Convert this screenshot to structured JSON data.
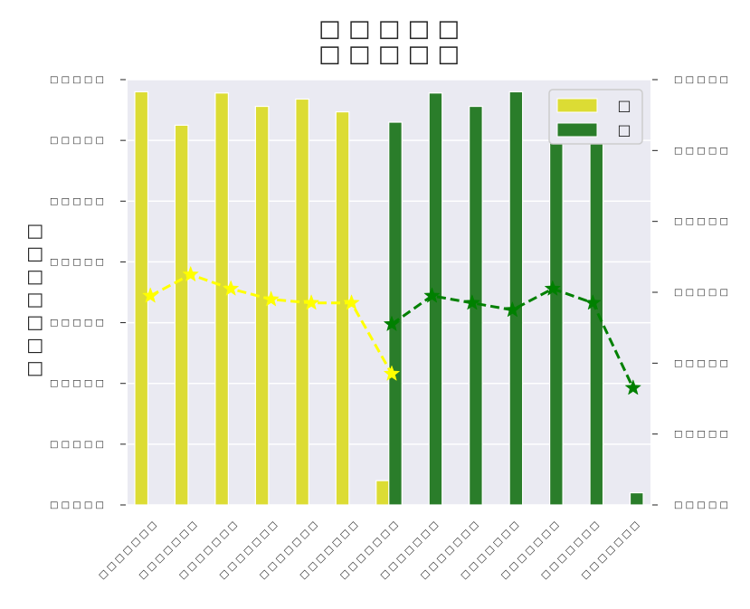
{
  "chart_data": {
    "type": "bar",
    "title": [
      "□ □ □ □ □",
      "□ □ □ □ □"
    ],
    "ylabel": "□ □ □ □ □ □ □",
    "categories": [
      "□ □ □ □ □ □ □",
      "□ □ □ □ □ □ □",
      "□ □ □ □ □ □ □",
      "□ □ □ □ □ □ □",
      "□ □ □ □ □ □ □",
      "□ □ □ □ □ □ □",
      "□ □ □ □ □ □ □",
      "□ □ □ □ □ □ □",
      "□ □ □ □ □ □ □",
      "□ □ □ □ □ □ □",
      "□ □ □ □ □ □ □",
      "□ □ □ □ □ □ □",
      "□ □ □ □ □ □ □"
    ],
    "left_ticks": [
      "□ □ □ □ □",
      "□ □ □ □ □",
      "□ □ □ □ □",
      "□ □ □ □ □",
      "□ □ □ □ □",
      "□ □ □ □ □",
      "□ □ □ □ □",
      "□ □ □ □ □"
    ],
    "right_ticks": [
      "□ □ □ □ □",
      "□ □ □ □ □",
      "□ □ □ □ □",
      "□ □ □ □ □",
      "□ □ □ □ □",
      "□ □ □ □ □",
      "□ □ □ □ □"
    ],
    "ylim": [
      0,
      7
    ],
    "y2lim": [
      0,
      6
    ],
    "grid": true,
    "legend_position": "top-right",
    "series": [
      {
        "name": "□",
        "color": "#dcdc34",
        "marker_color": "#ffff00",
        "bars": [
          6.8,
          6.25,
          6.78,
          6.56,
          6.68,
          6.47,
          0.4,
          null,
          null,
          null,
          null,
          null,
          null
        ],
        "line": [
          2.95,
          3.25,
          3.05,
          2.9,
          2.85,
          2.85,
          1.85,
          null,
          null,
          null,
          null,
          null,
          null
        ]
      },
      {
        "name": "□",
        "color": "#2a7d2a",
        "marker_color": "#008000",
        "bars": [
          null,
          null,
          null,
          null,
          null,
          null,
          6.3,
          6.78,
          6.56,
          6.8,
          6.56,
          6.62,
          0.2
        ],
        "line": [
          null,
          null,
          null,
          null,
          null,
          null,
          2.55,
          2.95,
          2.85,
          2.75,
          3.05,
          2.85,
          1.65
        ]
      }
    ]
  }
}
